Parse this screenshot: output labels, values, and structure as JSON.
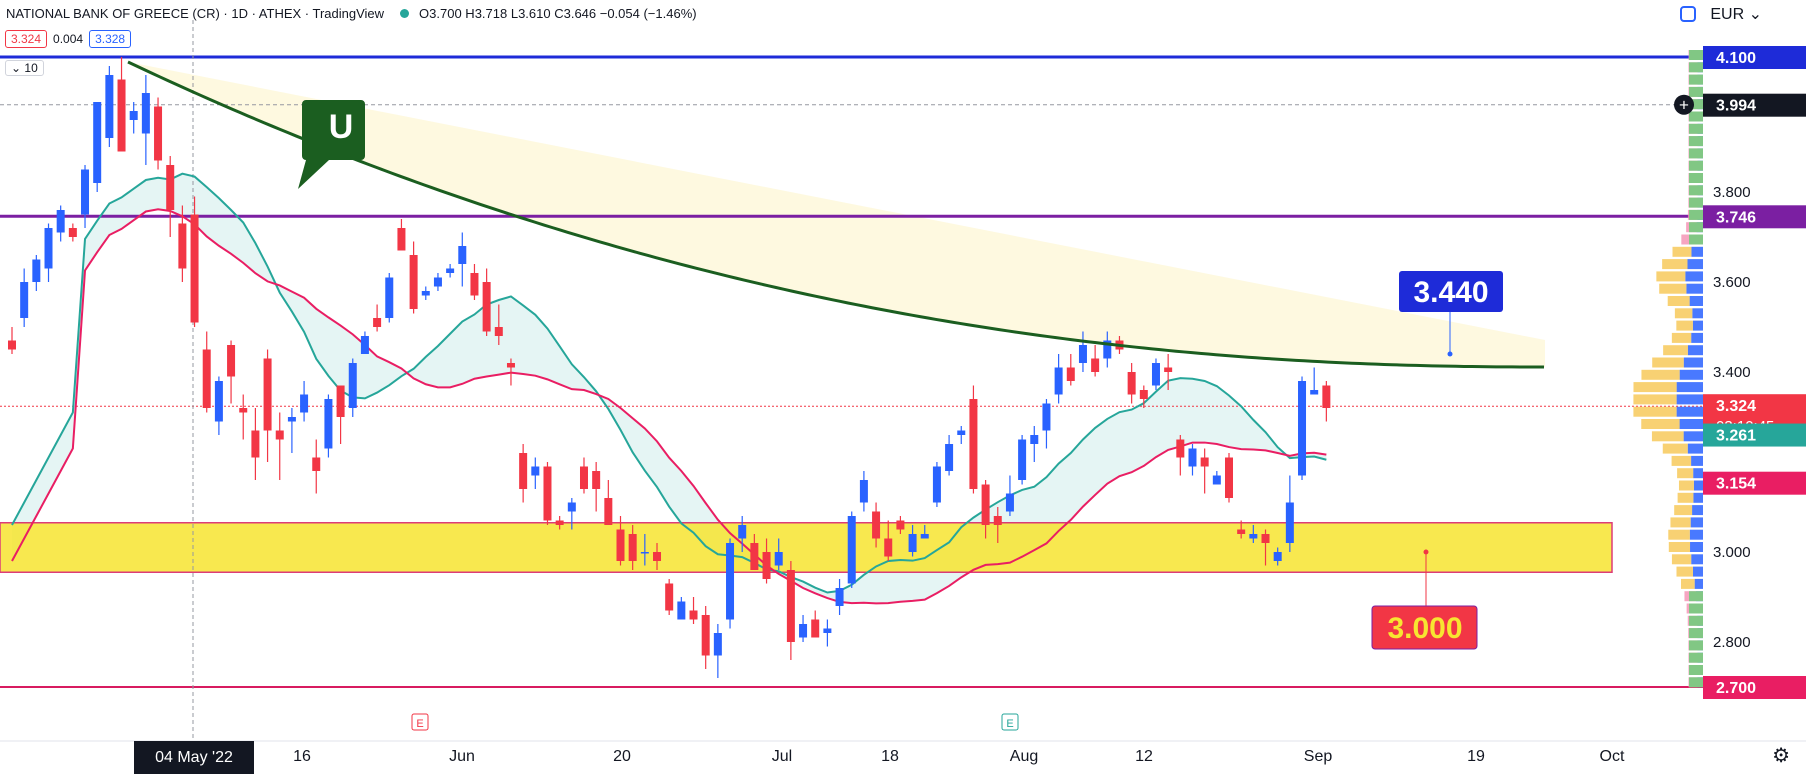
{
  "header": {
    "symbol": "NATIONAL BANK OF GREECE (CR) · 1D · ATHEX · TradingView",
    "ohlc": "O3.700  H3.718  L3.610  C3.646  −0.054 (−1.46%)",
    "bid": "3.324",
    "spread": "0.004",
    "ask": "3.328",
    "indicator": "10",
    "currency": "EUR"
  },
  "colors": {
    "up": "#2962ff",
    "down": "#f23645",
    "resistance": "#1e2bd8",
    "mid_resistance": "#7b1fa2",
    "support_zone": "#f7e531",
    "support_border": "#d81b60",
    "curve": "#1b5e20",
    "band_upper": "#26a69a",
    "band_lower": "#e91e63"
  },
  "annotations": {
    "u_label": "U",
    "target_up": "3.440",
    "target_down": "3.000"
  },
  "crosshair_date": "04 May '22",
  "settings_icon": "gear-icon",
  "chart_data": {
    "type": "candlestick",
    "title": "NATIONAL BANK OF GREECE (CR) · 1D · ATHEX",
    "ylim": [
      2.66,
      4.16
    ],
    "y_ticks": [
      "3.800",
      "3.600",
      "3.400",
      "3.000",
      "2.800"
    ],
    "x_ticks": [
      "16",
      "Jun",
      "20",
      "Jul",
      "18",
      "Aug",
      "12",
      "Sep",
      "19",
      "Oct"
    ],
    "price_labels": [
      {
        "text": "4.100",
        "value": 4.1,
        "color": "#1e2bd8"
      },
      {
        "text": "3.994",
        "value": 3.994,
        "color": "#131722"
      },
      {
        "text": "3.746",
        "value": 3.746,
        "color": "#7b1fa2"
      },
      {
        "text": "3.324",
        "value": 3.324,
        "color": "#f23645"
      },
      {
        "text": "03:10:45",
        "value": 3.3,
        "color": "#f23645"
      },
      {
        "text": "3.261",
        "value": 3.261,
        "color": "#26a69a"
      },
      {
        "text": "3.154",
        "value": 3.154,
        "color": "#e91e63"
      },
      {
        "text": "2.700",
        "value": 2.7,
        "color": "#e91e63"
      }
    ],
    "horizontal_levels": [
      4.1,
      3.746,
      2.7
    ],
    "support_zone": [
      2.955,
      3.065
    ],
    "candles": [
      [
        3.47,
        3.5,
        3.44,
        3.45
      ],
      [
        3.52,
        3.63,
        3.5,
        3.6
      ],
      [
        3.6,
        3.66,
        3.58,
        3.65
      ],
      [
        3.63,
        3.73,
        3.6,
        3.72
      ],
      [
        3.71,
        3.77,
        3.69,
        3.76
      ],
      [
        3.72,
        3.73,
        3.69,
        3.7
      ],
      [
        3.75,
        3.86,
        3.72,
        3.85
      ],
      [
        3.82,
        4.0,
        3.8,
        4.0
      ],
      [
        3.92,
        4.08,
        3.9,
        4.06
      ],
      [
        4.05,
        4.1,
        3.89,
        3.89
      ],
      [
        3.96,
        4.0,
        3.93,
        3.98
      ],
      [
        3.93,
        4.06,
        3.86,
        4.02
      ],
      [
        3.99,
        4.01,
        3.85,
        3.87
      ],
      [
        3.86,
        3.88,
        3.7,
        3.76
      ],
      [
        3.73,
        3.77,
        3.6,
        3.63
      ],
      [
        3.75,
        3.79,
        3.5,
        3.51
      ],
      [
        3.45,
        3.49,
        3.31,
        3.32
      ],
      [
        3.29,
        3.39,
        3.26,
        3.38
      ],
      [
        3.46,
        3.47,
        3.33,
        3.39
      ],
      [
        3.32,
        3.35,
        3.25,
        3.31
      ],
      [
        3.27,
        3.32,
        3.16,
        3.21
      ],
      [
        3.43,
        3.45,
        3.2,
        3.27
      ],
      [
        3.27,
        3.31,
        3.16,
        3.25
      ],
      [
        3.29,
        3.32,
        3.22,
        3.3
      ],
      [
        3.31,
        3.38,
        3.29,
        3.35
      ],
      [
        3.21,
        3.25,
        3.13,
        3.18
      ],
      [
        3.23,
        3.35,
        3.21,
        3.34
      ],
      [
        3.37,
        3.37,
        3.24,
        3.3
      ],
      [
        3.32,
        3.43,
        3.3,
        3.42
      ],
      [
        3.44,
        3.49,
        3.44,
        3.48
      ],
      [
        3.52,
        3.55,
        3.49,
        3.5
      ],
      [
        3.52,
        3.62,
        3.51,
        3.61
      ],
      [
        3.72,
        3.74,
        3.67,
        3.67
      ],
      [
        3.66,
        3.69,
        3.53,
        3.54
      ],
      [
        3.57,
        3.59,
        3.56,
        3.58
      ],
      [
        3.59,
        3.62,
        3.58,
        3.61
      ],
      [
        3.62,
        3.64,
        3.61,
        3.63
      ],
      [
        3.64,
        3.71,
        3.59,
        3.68
      ],
      [
        3.62,
        3.64,
        3.56,
        3.57
      ],
      [
        3.6,
        3.63,
        3.48,
        3.49
      ],
      [
        3.5,
        3.55,
        3.46,
        3.48
      ],
      [
        3.42,
        3.43,
        3.37,
        3.41
      ],
      [
        3.22,
        3.24,
        3.11,
        3.14
      ],
      [
        3.17,
        3.21,
        3.14,
        3.19
      ],
      [
        3.19,
        3.2,
        3.06,
        3.07
      ],
      [
        3.07,
        3.08,
        3.05,
        3.06
      ],
      [
        3.09,
        3.12,
        3.05,
        3.11
      ],
      [
        3.19,
        3.21,
        3.13,
        3.14
      ],
      [
        3.18,
        3.2,
        3.09,
        3.14
      ],
      [
        3.12,
        3.16,
        3.06,
        3.06
      ],
      [
        3.05,
        3.08,
        2.97,
        2.98
      ],
      [
        3.04,
        3.06,
        2.96,
        2.98
      ],
      [
        3.0,
        3.04,
        2.97,
        3.0
      ],
      [
        3.0,
        3.02,
        2.96,
        2.98
      ],
      [
        2.93,
        2.94,
        2.86,
        2.87
      ],
      [
        2.85,
        2.9,
        2.85,
        2.89
      ],
      [
        2.87,
        2.9,
        2.84,
        2.85
      ],
      [
        2.86,
        2.88,
        2.74,
        2.77
      ],
      [
        2.77,
        2.84,
        2.72,
        2.82
      ],
      [
        2.85,
        3.03,
        2.83,
        3.02
      ],
      [
        3.03,
        3.08,
        3.0,
        3.06
      ],
      [
        3.02,
        3.04,
        2.96,
        2.96
      ],
      [
        3.0,
        3.03,
        2.93,
        2.94
      ],
      [
        2.97,
        3.03,
        2.96,
        3.0
      ],
      [
        2.96,
        2.98,
        2.76,
        2.8
      ],
      [
        2.81,
        2.86,
        2.8,
        2.84
      ],
      [
        2.85,
        2.87,
        2.81,
        2.81
      ],
      [
        2.82,
        2.85,
        2.79,
        2.83
      ],
      [
        2.88,
        2.94,
        2.86,
        2.92
      ],
      [
        2.93,
        3.09,
        2.92,
        3.08
      ],
      [
        3.11,
        3.18,
        3.09,
        3.16
      ],
      [
        3.09,
        3.11,
        3.01,
        3.03
      ],
      [
        3.03,
        3.07,
        2.98,
        2.99
      ],
      [
        3.07,
        3.08,
        3.04,
        3.05
      ],
      [
        3.0,
        3.06,
        2.99,
        3.04
      ],
      [
        3.03,
        3.06,
        3.03,
        3.04
      ],
      [
        3.11,
        3.2,
        3.1,
        3.19
      ],
      [
        3.18,
        3.26,
        3.17,
        3.24
      ],
      [
        3.26,
        3.28,
        3.24,
        3.27
      ],
      [
        3.34,
        3.37,
        3.13,
        3.14
      ],
      [
        3.15,
        3.16,
        3.03,
        3.06
      ],
      [
        3.08,
        3.1,
        3.02,
        3.06
      ],
      [
        3.09,
        3.17,
        3.08,
        3.13
      ],
      [
        3.16,
        3.26,
        3.15,
        3.25
      ],
      [
        3.24,
        3.28,
        3.2,
        3.26
      ],
      [
        3.27,
        3.34,
        3.23,
        3.33
      ],
      [
        3.35,
        3.44,
        3.33,
        3.41
      ],
      [
        3.41,
        3.44,
        3.37,
        3.38
      ],
      [
        3.42,
        3.49,
        3.4,
        3.46
      ],
      [
        3.43,
        3.46,
        3.39,
        3.4
      ],
      [
        3.43,
        3.49,
        3.41,
        3.47
      ],
      [
        3.47,
        3.48,
        3.44,
        3.45
      ],
      [
        3.4,
        3.42,
        3.33,
        3.35
      ],
      [
        3.36,
        3.37,
        3.32,
        3.34
      ],
      [
        3.37,
        3.43,
        3.36,
        3.42
      ],
      [
        3.41,
        3.44,
        3.36,
        3.4
      ],
      [
        3.25,
        3.26,
        3.17,
        3.21
      ],
      [
        3.19,
        3.24,
        3.17,
        3.23
      ],
      [
        3.21,
        3.23,
        3.13,
        3.19
      ],
      [
        3.15,
        3.18,
        3.15,
        3.17
      ],
      [
        3.21,
        3.22,
        3.11,
        3.12
      ],
      [
        3.05,
        3.07,
        3.03,
        3.04
      ],
      [
        3.03,
        3.06,
        3.02,
        3.04
      ],
      [
        3.04,
        3.05,
        2.97,
        3.02
      ],
      [
        2.98,
        3.01,
        2.97,
        3.0
      ],
      [
        3.02,
        3.17,
        3.0,
        3.11
      ],
      [
        3.17,
        3.39,
        3.16,
        3.38
      ],
      [
        3.35,
        3.41,
        3.35,
        3.36
      ],
      [
        3.37,
        3.38,
        3.29,
        3.32
      ]
    ]
  }
}
